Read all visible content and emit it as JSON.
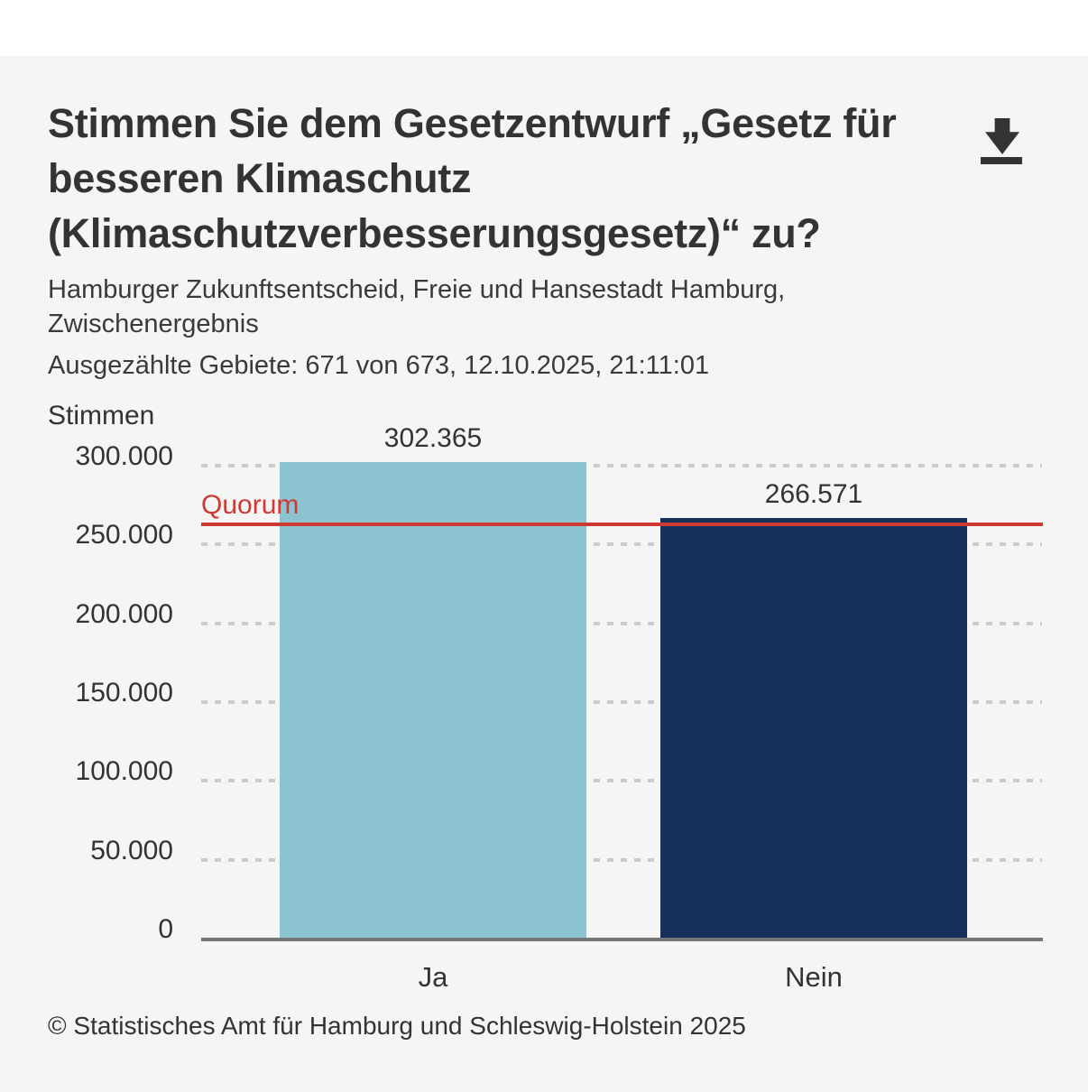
{
  "header": {
    "title_lines": [
      "Stimmen Sie dem Gesetzentwurf „Gesetz für",
      "besseren Klimaschutz",
      "(Klimaschutzverbesserungsgesetz)“ zu?"
    ],
    "subtitle_lines": [
      "Hamburger Zukunftsentscheid, Freie und Hansestadt Hamburg,",
      "Zwischenergebnis"
    ],
    "status": "Ausgezählte Gebiete: 671 von 673, 12.10.2025, 21:11:01"
  },
  "chart_data": {
    "type": "bar",
    "title": "Stimmen Sie dem Gesetzentwurf „Gesetz für besseren Klimaschutz (Klimaschutzverbesserungsgesetz)“ zu?",
    "subtitle": "Hamburger Zukunftsentscheid, Freie und Hansestadt Hamburg, Zwischenergebnis",
    "status": "Ausgezählte Gebiete: 671 von 673, 12.10.2025, 21:11:01",
    "ylabel": "Stimmen",
    "xlabel": "",
    "categories": [
      "Ja",
      "Nein"
    ],
    "values": [
      302365,
      266571
    ],
    "value_labels": [
      "302.365",
      "266.571"
    ],
    "bar_colors": [
      "#8bc3d1",
      "#16305b"
    ],
    "ylim": [
      0,
      300000
    ],
    "yticks": [
      0,
      50000,
      100000,
      150000,
      200000,
      250000,
      300000
    ],
    "ytick_labels": [
      "0",
      "50.000",
      "100.000",
      "150.000",
      "200.000",
      "250.000",
      "300.000"
    ],
    "grid": "horizontal dotted",
    "legend": "none",
    "quorum": {
      "label": "Quorum",
      "value_estimate": 263000,
      "color": "#ce3a32"
    }
  },
  "footer": {
    "copyright": "© Statistisches Amt für Hamburg und Schleswig-Holstein 2025"
  },
  "colors": {
    "background": "#f5f5f5",
    "top_band": "#ffffff",
    "text": "#333333",
    "gridline": "#cbcbcb",
    "axis_line": "#757575",
    "bar_ja": "#8bc3d1",
    "bar_nein": "#16305b",
    "quorum_red": "#ce3a32"
  },
  "icons": {
    "cursor": "drop-arrow-cursor-icon"
  }
}
